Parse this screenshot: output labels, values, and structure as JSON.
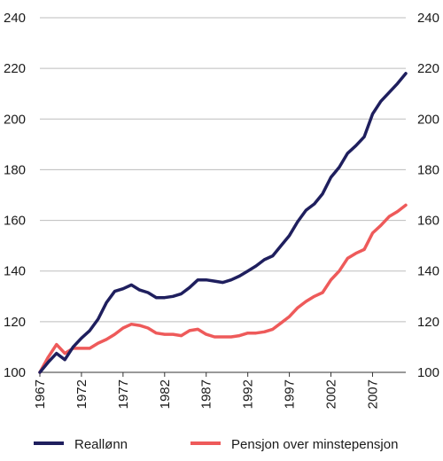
{
  "chart_data": {
    "type": "line",
    "title": "",
    "xlabel": "",
    "ylabel": "",
    "ylim": [
      100,
      240
    ],
    "xlim": [
      1967,
      2011
    ],
    "yticks": [
      100,
      120,
      140,
      160,
      180,
      200,
      220,
      240
    ],
    "xticks": [
      1967,
      1972,
      1977,
      1982,
      1987,
      1992,
      1997,
      2002,
      2007
    ],
    "grid": "horizontal",
    "legend_position": "bottom",
    "x": [
      1967,
      1968,
      1969,
      1970,
      1971,
      1972,
      1973,
      1974,
      1975,
      1976,
      1977,
      1978,
      1979,
      1980,
      1981,
      1982,
      1983,
      1984,
      1985,
      1986,
      1987,
      1988,
      1989,
      1990,
      1991,
      1992,
      1993,
      1994,
      1995,
      1996,
      1997,
      1998,
      1999,
      2000,
      2001,
      2002,
      2003,
      2004,
      2005,
      2006,
      2007,
      2008,
      2009,
      2010,
      2011
    ],
    "series": [
      {
        "name": "Reallønn",
        "color": "#1f1f5e",
        "values": [
          100,
          104,
          107.5,
          105,
          110,
          113.5,
          116.5,
          121,
          127.5,
          132,
          133,
          134.5,
          132.5,
          131.5,
          129.5,
          129.5,
          130,
          131,
          133.5,
          136.5,
          136.5,
          136,
          135.5,
          136.5,
          138,
          140,
          142,
          144.5,
          146,
          150,
          154,
          159.5,
          164,
          166.5,
          170.5,
          177,
          181,
          186.5,
          189.5,
          193,
          202,
          207,
          210.5,
          214,
          218
        ]
      },
      {
        "name": "Pensjon over minstepensjon",
        "color": "#ee5a5a",
        "values": [
          100,
          106,
          111,
          107.5,
          109.5,
          109.5,
          109.5,
          111.5,
          113,
          115,
          117.5,
          119,
          118.5,
          117.5,
          115.5,
          115,
          115,
          114.5,
          116.5,
          117,
          115,
          114,
          114,
          114,
          114.5,
          115.5,
          115.5,
          116,
          117,
          119.5,
          122,
          125.5,
          128,
          130,
          131.5,
          136.5,
          140,
          145,
          147,
          148.5,
          155,
          158,
          161.5,
          163.5,
          166
        ]
      }
    ]
  }
}
